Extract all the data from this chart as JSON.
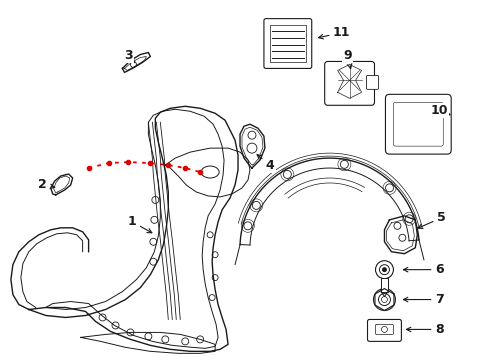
{
  "bg_color": "#ffffff",
  "line_color": "#1a1a1a",
  "red_color": "#e00000",
  "figsize": [
    4.89,
    3.6
  ],
  "dpi": 100
}
